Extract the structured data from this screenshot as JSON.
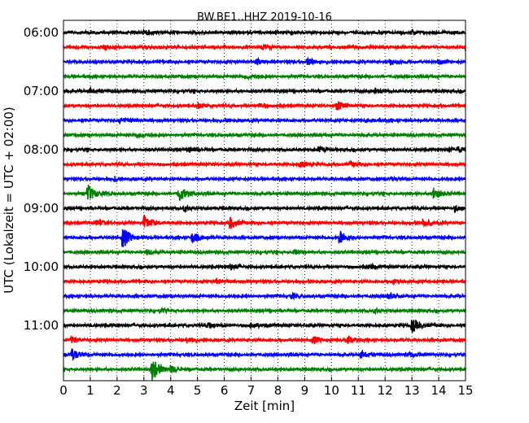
{
  "chart_data": {
    "type": "line",
    "title": "BW.BE1..HHZ 2019-10-16",
    "xlabel": "Zeit  [min]",
    "ylabel": "UTC (Lokalzeit = UTC + 02:00)",
    "xlim": [
      0,
      15
    ],
    "x_ticks": [
      "0",
      "1",
      "2",
      "3",
      "4",
      "5",
      "6",
      "7",
      "8",
      "9",
      "10",
      "11",
      "12",
      "13",
      "14",
      "15"
    ],
    "y_tick_labels": [
      "06:00",
      "07:00",
      "08:00",
      "09:00",
      "10:00",
      "11:00"
    ],
    "grid": "vertical dotted",
    "color_cycle": [
      "#000000",
      "#ff0000",
      "#0000ff",
      "#008000"
    ],
    "traces": [
      {
        "start": "06:00",
        "events": [
          [
            3.0,
            0.35
          ],
          [
            13.0,
            0.3
          ]
        ]
      },
      {
        "start": "06:15",
        "events": [
          [
            1.5,
            0.25
          ],
          [
            7.4,
            0.3
          ],
          [
            15.0,
            0.35
          ]
        ]
      },
      {
        "start": "06:30",
        "events": [
          [
            7.2,
            0.35
          ],
          [
            9.1,
            0.4
          ],
          [
            12.2,
            0.3
          ],
          [
            14.0,
            0.25
          ]
        ]
      },
      {
        "start": "06:45",
        "events": [
          [
            6.8,
            0.3
          ]
        ]
      },
      {
        "start": "07:00",
        "events": [
          [
            1.0,
            0.3
          ],
          [
            11.6,
            0.25
          ]
        ]
      },
      {
        "start": "07:15",
        "events": [
          [
            5.0,
            0.3
          ],
          [
            7.3,
            0.3
          ],
          [
            10.2,
            0.55
          ]
        ]
      },
      {
        "start": "07:30",
        "events": [
          [
            2.1,
            0.3
          ],
          [
            11.3,
            0.2
          ]
        ]
      },
      {
        "start": "07:45",
        "events": [
          [
            2.7,
            0.25
          ]
        ]
      },
      {
        "start": "08:00",
        "events": [
          [
            4.7,
            0.3
          ],
          [
            9.5,
            0.3
          ],
          [
            14.4,
            0.25
          ],
          [
            14.7,
            0.3
          ]
        ]
      },
      {
        "start": "08:15",
        "events": [
          [
            8.8,
            0.3
          ],
          [
            10.7,
            0.25
          ]
        ]
      },
      {
        "start": "08:30",
        "events": [
          [
            1.9,
            0.3
          ],
          [
            12.2,
            0.2
          ]
        ]
      },
      {
        "start": "08:45",
        "events": [
          [
            0.9,
            1.1
          ],
          [
            4.3,
            1.1
          ],
          [
            13.8,
            0.7
          ]
        ]
      },
      {
        "start": "09:00",
        "events": [
          [
            4.5,
            0.3
          ],
          [
            14.6,
            0.35
          ]
        ]
      },
      {
        "start": "09:15",
        "events": [
          [
            1.2,
            0.4
          ],
          [
            3.0,
            0.9
          ],
          [
            6.2,
            0.75
          ],
          [
            13.4,
            0.55
          ]
        ]
      },
      {
        "start": "09:30",
        "events": [
          [
            2.2,
            1.4
          ],
          [
            4.8,
            0.7
          ],
          [
            10.3,
            0.9
          ]
        ]
      },
      {
        "start": "09:45",
        "events": [
          [
            3.1,
            0.3
          ],
          [
            8.6,
            0.25
          ]
        ]
      },
      {
        "start": "10:00",
        "events": [
          [
            6.2,
            0.35
          ],
          [
            11.4,
            0.3
          ]
        ]
      },
      {
        "start": "10:15",
        "events": [
          [
            5.7,
            0.3
          ],
          [
            12.3,
            0.25
          ]
        ]
      },
      {
        "start": "10:30",
        "events": [
          [
            8.5,
            0.3
          ],
          [
            12.1,
            0.3
          ]
        ]
      },
      {
        "start": "10:45",
        "events": [
          [
            3.6,
            0.25
          ],
          [
            11.6,
            0.25
          ]
        ]
      },
      {
        "start": "11:00",
        "events": [
          [
            5.4,
            0.35
          ],
          [
            7.0,
            0.4
          ],
          [
            13.0,
            0.9
          ]
        ]
      },
      {
        "start": "11:15",
        "events": [
          [
            0.3,
            0.35
          ],
          [
            4.6,
            0.4
          ],
          [
            9.3,
            0.45
          ],
          [
            10.6,
            0.5
          ]
        ]
      },
      {
        "start": "11:30",
        "events": [
          [
            0.3,
            0.8
          ],
          [
            11.1,
            0.45
          ],
          [
            12.9,
            0.3
          ]
        ]
      },
      {
        "start": "11:45",
        "events": [
          [
            3.3,
            1.5
          ],
          [
            4.0,
            0.4
          ]
        ]
      }
    ]
  }
}
